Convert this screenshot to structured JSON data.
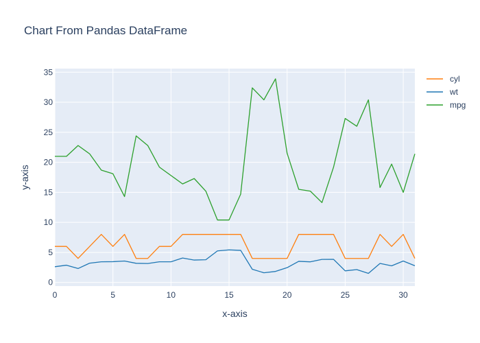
{
  "chart_data": {
    "type": "line",
    "title": "Chart From Pandas DataFrame",
    "xlabel": "x-axis",
    "ylabel": "y-axis",
    "xlim": [
      0,
      31
    ],
    "ylim": [
      -0.6,
      35.6
    ],
    "x_ticks": [
      0,
      5,
      10,
      15,
      20,
      25,
      30
    ],
    "y_ticks": [
      0,
      5,
      10,
      15,
      20,
      25,
      30,
      35
    ],
    "grid": true,
    "legend_position": "top-right",
    "plot_background": "#e5ecf6",
    "x": [
      0,
      1,
      2,
      3,
      4,
      5,
      6,
      7,
      8,
      9,
      10,
      11,
      12,
      13,
      14,
      15,
      16,
      17,
      18,
      19,
      20,
      21,
      22,
      23,
      24,
      25,
      26,
      27,
      28,
      29,
      30,
      31
    ],
    "series": [
      {
        "name": "cyl",
        "color": "#ff7f0e",
        "values": [
          6,
          6,
          4,
          6,
          8,
          6,
          8,
          4,
          4,
          6,
          6,
          8,
          8,
          8,
          8,
          8,
          8,
          4,
          4,
          4,
          4,
          8,
          8,
          8,
          8,
          4,
          4,
          4,
          8,
          6,
          8,
          4
        ]
      },
      {
        "name": "wt",
        "color": "#1f77b4",
        "values": [
          2.62,
          2.875,
          2.32,
          3.215,
          3.44,
          3.46,
          3.57,
          3.19,
          3.15,
          3.44,
          3.44,
          4.07,
          3.73,
          3.78,
          5.25,
          5.424,
          5.345,
          2.2,
          1.615,
          1.835,
          2.465,
          3.52,
          3.435,
          3.84,
          3.845,
          1.935,
          2.14,
          1.513,
          3.17,
          2.77,
          3.57,
          2.78
        ]
      },
      {
        "name": "mpg",
        "color": "#2ca02c",
        "values": [
          21,
          21,
          22.8,
          21.4,
          18.7,
          18.1,
          14.3,
          24.4,
          22.8,
          19.2,
          17.8,
          16.4,
          17.3,
          15.2,
          10.4,
          10.4,
          14.7,
          32.4,
          30.4,
          33.9,
          21.5,
          15.5,
          15.2,
          13.3,
          19.2,
          27.3,
          26,
          30.4,
          15.8,
          19.7,
          15,
          21.4
        ]
      }
    ]
  }
}
